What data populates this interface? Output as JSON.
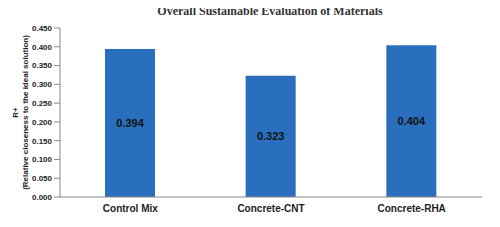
{
  "chart_data": {
    "type": "bar",
    "title": "Overall Sustainable Evaluation of Materials",
    "y_label": "R+ (Relative closeness to the ideal solution)",
    "categories": [
      "Control Mix",
      "Concrete-CNT",
      "Concrete-RHA"
    ],
    "values": [
      0.394,
      0.323,
      0.404
    ],
    "color": "#2a6fbd",
    "ylim": [
      0,
      0.45
    ],
    "yticks": [
      {
        "value": 0,
        "label": "0.000"
      },
      {
        "value": 0.05,
        "label": "0.050"
      },
      {
        "value": 0.1,
        "label": "0.100"
      },
      {
        "value": 0.15,
        "label": "0.150"
      },
      {
        "value": 0.2,
        "label": "0.200"
      },
      {
        "value": 0.25,
        "label": "0.250"
      },
      {
        "value": 0.3,
        "label": "0.300"
      },
      {
        "value": 0.35,
        "label": "0.350"
      },
      {
        "value": 0.4,
        "label": "0.400"
      },
      {
        "value": 0.45,
        "label": "0.450"
      }
    ],
    "grid": false,
    "data_labels": true
  }
}
